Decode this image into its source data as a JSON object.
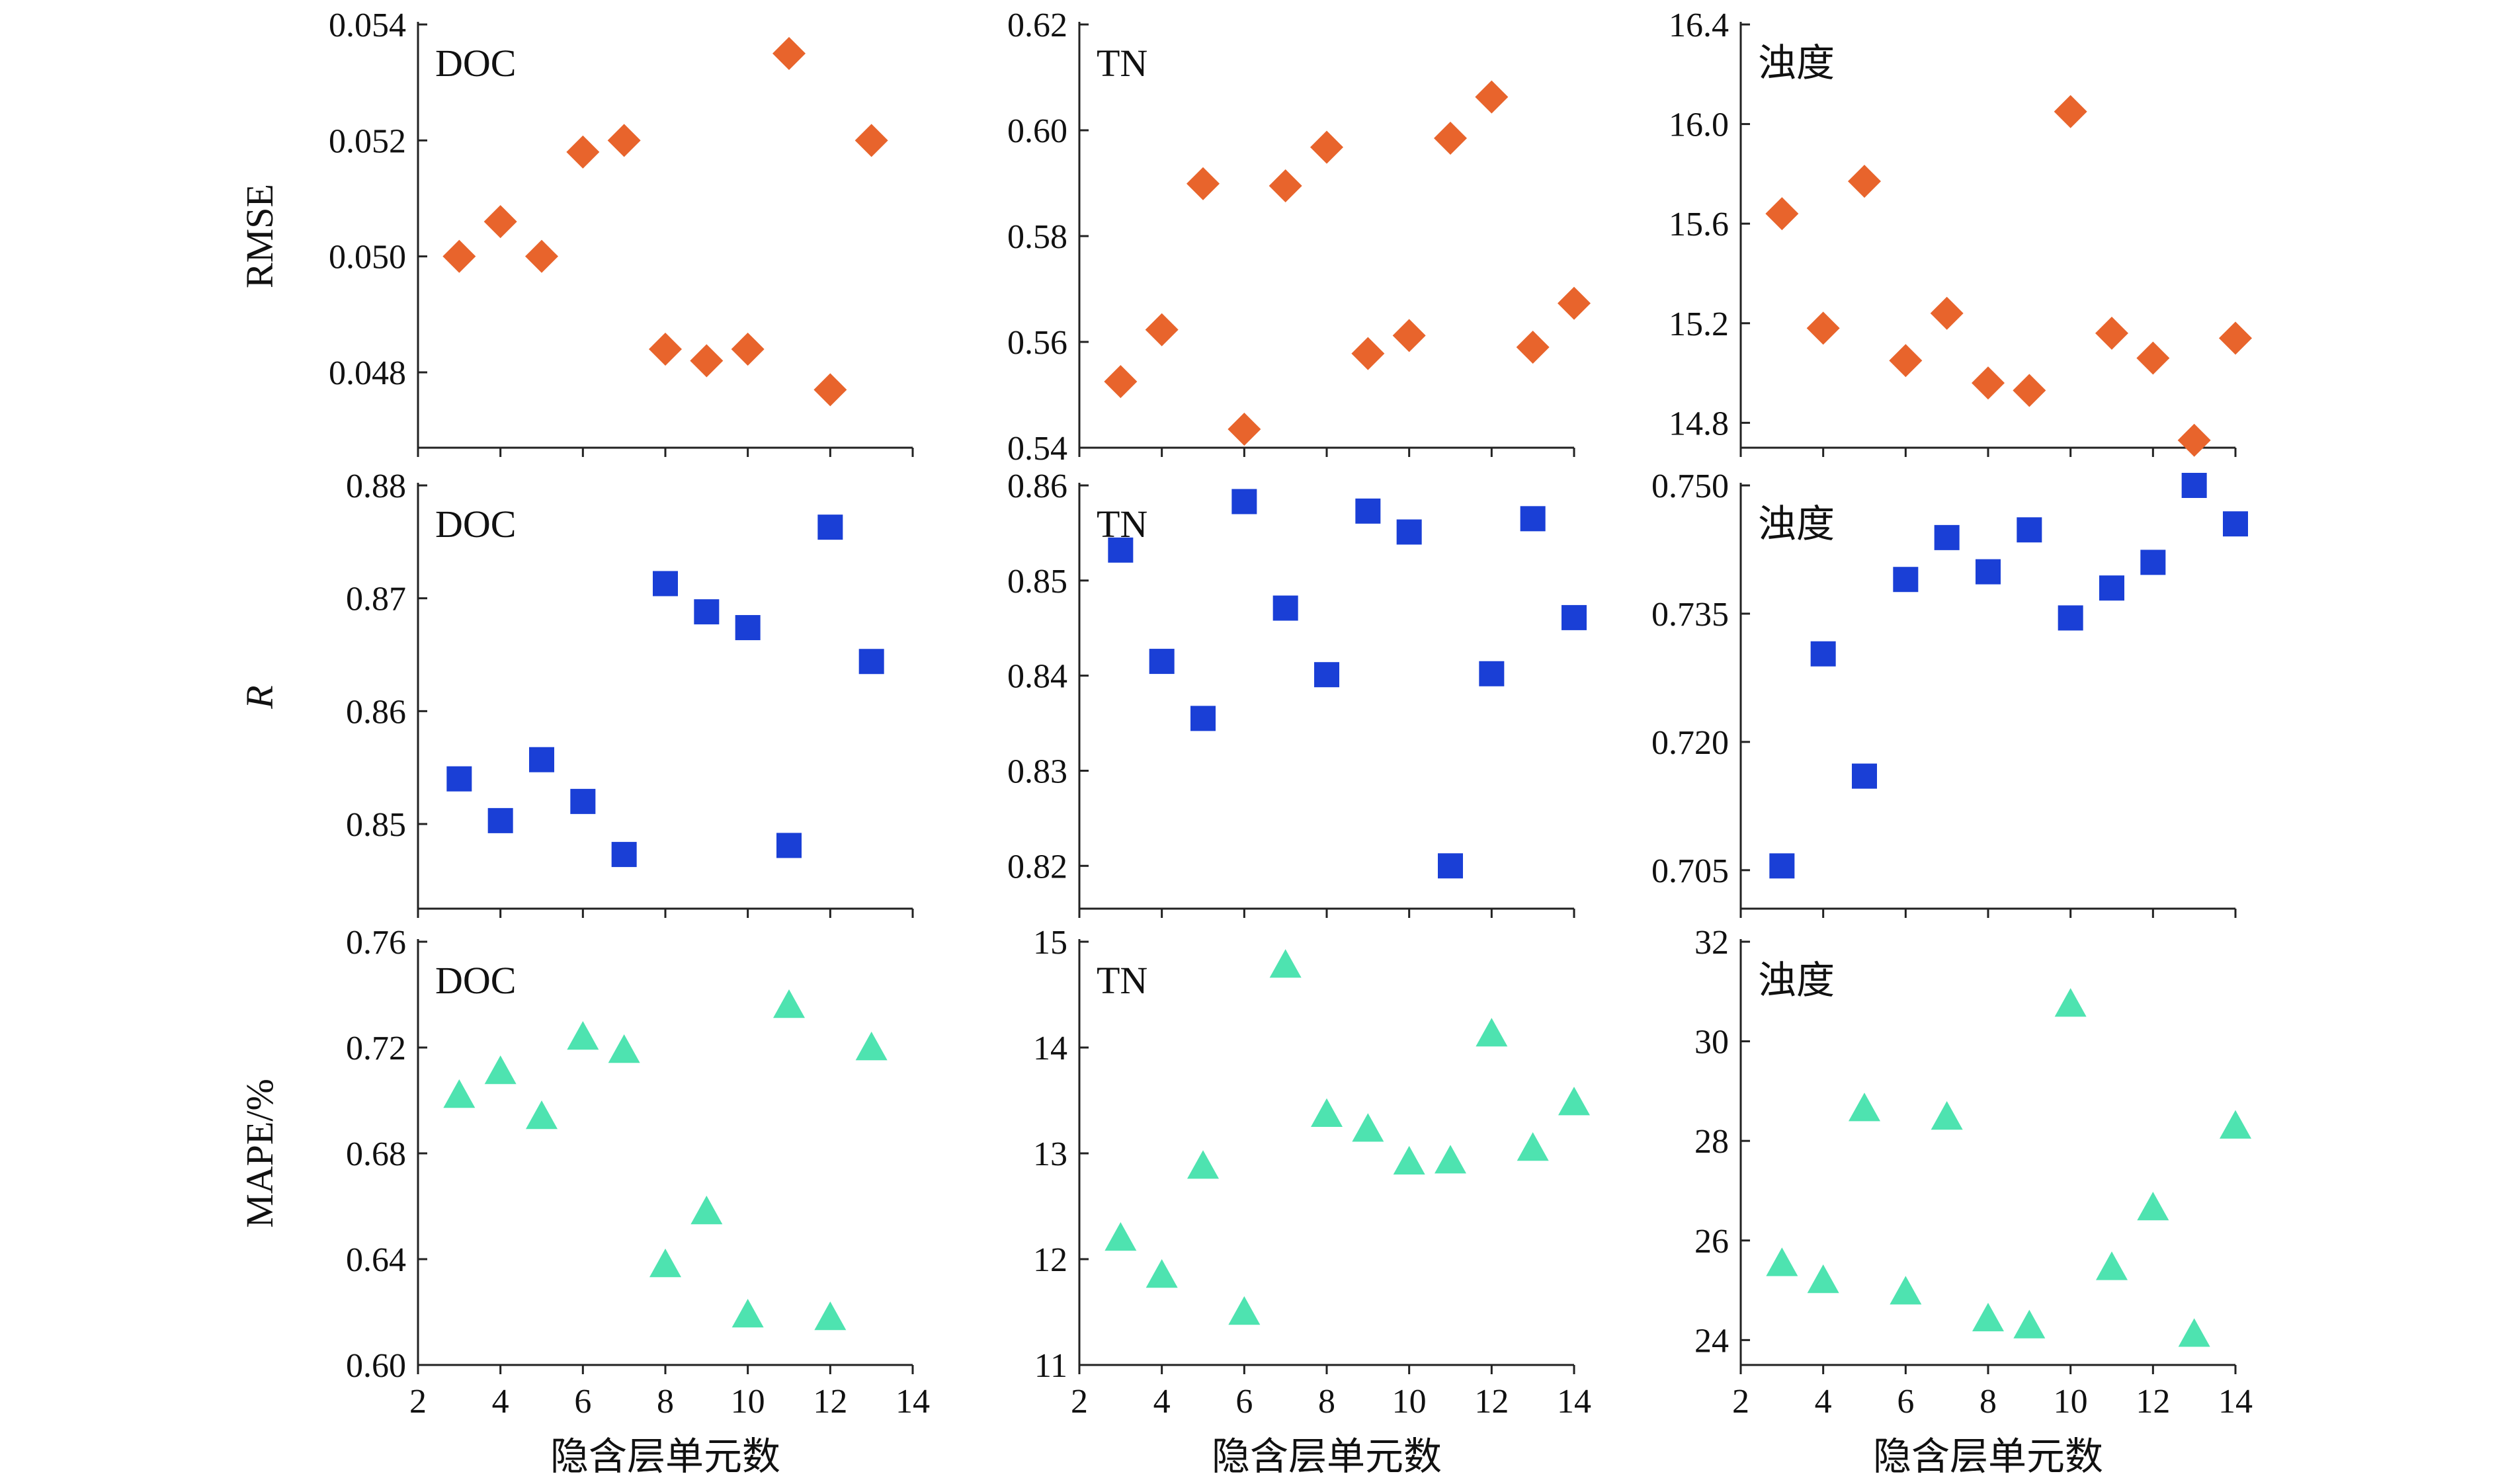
{
  "colors": {
    "rmse": "#E8642C",
    "r": "#1A3FD6",
    "mape": "#4EE3B0",
    "axis": "#222222"
  },
  "chart_data": [
    {
      "type": "scatter",
      "row": "RMSE",
      "col": "DOC",
      "label": "DOC",
      "ylabel": "RMSE",
      "xlabel": "",
      "marker": "diamond",
      "xlim": [
        2,
        14
      ],
      "xticks": [
        "2",
        "4",
        "6",
        "8",
        "10",
        "12",
        "14"
      ],
      "ylim": [
        0.0467,
        0.054
      ],
      "yticks": [
        "0.048",
        "0.050",
        "0.052",
        "0.054"
      ],
      "x": [
        3,
        4,
        5,
        6,
        7,
        8,
        9,
        10,
        11,
        12,
        13
      ],
      "y": [
        0.05,
        0.0506,
        0.05,
        0.0518,
        0.052,
        0.0484,
        0.0482,
        0.0484,
        0.0535,
        0.0477,
        0.052
      ]
    },
    {
      "type": "scatter",
      "row": "RMSE",
      "col": "TN",
      "label": "TN",
      "ylabel": "",
      "xlabel": "",
      "marker": "diamond",
      "xlim": [
        2,
        14
      ],
      "xticks": [
        "2",
        "4",
        "6",
        "8",
        "10",
        "12",
        "14"
      ],
      "ylim": [
        0.54,
        0.62
      ],
      "yticks": [
        "0.54",
        "0.56",
        "0.58",
        "0.60",
        "0.62"
      ],
      "x": [
        3,
        4,
        5,
        6,
        7,
        8,
        9,
        10,
        11,
        12,
        13,
        14
      ],
      "y": [
        0.5525,
        0.5623,
        0.5899,
        0.5435,
        0.5895,
        0.5968,
        0.5578,
        0.5612,
        0.5985,
        0.6063,
        0.559,
        0.5673
      ]
    },
    {
      "type": "scatter",
      "row": "RMSE",
      "col": "turbidity",
      "label": "浊度",
      "ylabel": "",
      "xlabel": "",
      "marker": "diamond",
      "xlim": [
        2,
        14
      ],
      "xticks": [
        "2",
        "4",
        "6",
        "8",
        "10",
        "12",
        "14"
      ],
      "ylim": [
        14.7,
        16.4
      ],
      "yticks": [
        "14.8",
        "15.2",
        "15.6",
        "16.0",
        "16.4"
      ],
      "x": [
        3,
        4,
        5,
        6,
        7,
        8,
        9,
        10,
        11,
        12,
        13,
        14
      ],
      "y": [
        15.64,
        15.18,
        15.77,
        15.05,
        15.24,
        14.96,
        14.93,
        16.05,
        15.16,
        15.06,
        14.73,
        15.14
      ]
    },
    {
      "type": "scatter",
      "row": "R",
      "col": "DOC",
      "label": "DOC",
      "ylabel": "R",
      "xlabel": "",
      "marker": "square",
      "xlim": [
        2,
        14
      ],
      "xticks": [
        "2",
        "4",
        "6",
        "8",
        "10",
        "12",
        "14"
      ],
      "ylim": [
        0.8425,
        0.88
      ],
      "yticks": [
        "0.85",
        "0.86",
        "0.87",
        "0.88"
      ],
      "x": [
        3,
        4,
        5,
        6,
        7,
        8,
        9,
        10,
        11,
        12,
        13
      ],
      "y": [
        0.854,
        0.8503,
        0.8557,
        0.852,
        0.8473,
        0.8713,
        0.8688,
        0.8674,
        0.8481,
        0.8763,
        0.8644
      ]
    },
    {
      "type": "scatter",
      "row": "R",
      "col": "TN",
      "label": "TN",
      "ylabel": "",
      "xlabel": "",
      "marker": "square",
      "xlim": [
        2,
        14
      ],
      "xticks": [
        "2",
        "4",
        "6",
        "8",
        "10",
        "12",
        "14"
      ],
      "ylim": [
        0.8155,
        0.86
      ],
      "yticks": [
        "0.82",
        "0.83",
        "0.84",
        "0.85",
        "0.86"
      ],
      "x": [
        3,
        4,
        5,
        6,
        7,
        8,
        9,
        10,
        11,
        12,
        13,
        14
      ],
      "y": [
        0.8532,
        0.8415,
        0.8355,
        0.8583,
        0.8471,
        0.8401,
        0.8573,
        0.8551,
        0.82,
        0.8402,
        0.8565,
        0.8461
      ]
    },
    {
      "type": "scatter",
      "row": "R",
      "col": "turbidity",
      "label": "浊度",
      "ylabel": "",
      "xlabel": "",
      "marker": "square",
      "xlim": [
        2,
        14
      ],
      "xticks": [
        "2",
        "4",
        "6",
        "8",
        "10",
        "12",
        "14"
      ],
      "ylim": [
        0.7005,
        0.75
      ],
      "yticks": [
        "0.705",
        "0.720",
        "0.735",
        "0.750"
      ],
      "x": [
        3,
        4,
        5,
        6,
        7,
        8,
        9,
        10,
        11,
        12,
        13,
        14
      ],
      "y": [
        0.7055,
        0.7303,
        0.716,
        0.739,
        0.7439,
        0.7399,
        0.7448,
        0.7345,
        0.738,
        0.741,
        0.75,
        0.7455
      ]
    },
    {
      "type": "scatter",
      "row": "MAPE",
      "col": "DOC",
      "label": "DOC",
      "ylabel": "MAPE/%",
      "xlabel": "隐含层单元数",
      "marker": "triangle",
      "xlim": [
        2,
        14
      ],
      "xticks": [
        "2",
        "4",
        "6",
        "8",
        "10",
        "12",
        "14"
      ],
      "ylim": [
        0.6,
        0.76
      ],
      "yticks": [
        "0.60",
        "0.64",
        "0.68",
        "0.72",
        "0.76"
      ],
      "x": [
        3,
        4,
        5,
        6,
        7,
        8,
        9,
        10,
        11,
        12,
        13
      ],
      "y": [
        0.702,
        0.711,
        0.694,
        0.724,
        0.719,
        0.638,
        0.658,
        0.619,
        0.736,
        0.618,
        0.72
      ]
    },
    {
      "type": "scatter",
      "row": "MAPE",
      "col": "TN",
      "label": "TN",
      "ylabel": "",
      "xlabel": "隐含层单元数",
      "marker": "triangle",
      "xlim": [
        2,
        14
      ],
      "xticks": [
        "2",
        "4",
        "6",
        "8",
        "10",
        "12",
        "14"
      ],
      "ylim": [
        11,
        15
      ],
      "yticks": [
        "11",
        "12",
        "13",
        "14",
        "15"
      ],
      "x": [
        3,
        4,
        5,
        6,
        7,
        8,
        9,
        10,
        11,
        12,
        13,
        14
      ],
      "y": [
        12.2,
        11.85,
        12.88,
        11.5,
        14.78,
        13.37,
        13.23,
        12.92,
        12.93,
        14.13,
        13.05,
        13.48
      ]
    },
    {
      "type": "scatter",
      "row": "MAPE",
      "col": "turbidity",
      "label": "浊度",
      "ylabel": "",
      "xlabel": "隐含层单元数",
      "marker": "triangle",
      "xlim": [
        2,
        14
      ],
      "xticks": [
        "2",
        "4",
        "6",
        "8",
        "10",
        "12",
        "14"
      ],
      "ylim": [
        23.5,
        32
      ],
      "yticks": [
        "24",
        "26",
        "28",
        "30",
        "32"
      ],
      "x": [
        3,
        4,
        5,
        6,
        7,
        8,
        9,
        10,
        11,
        12,
        13,
        14
      ],
      "y": [
        25.54,
        25.2,
        28.65,
        24.97,
        28.48,
        24.43,
        24.29,
        30.75,
        25.46,
        26.66,
        24.12,
        28.3
      ]
    }
  ]
}
